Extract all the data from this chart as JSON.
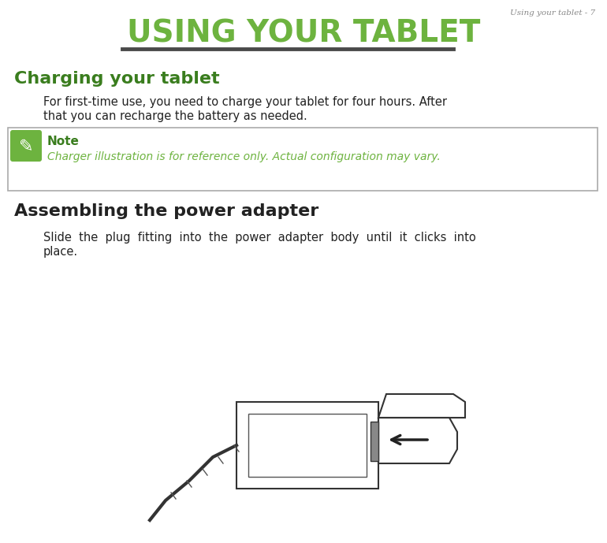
{
  "page_header": "Using your tablet - 7",
  "main_title": "USING YOUR TABLET",
  "main_title_color": "#6db33f",
  "title_underline_color": "#4a4a4a",
  "section1_title": "Charging your tablet",
  "section1_title_color": "#3a7d1e",
  "section1_body_line1": "For first-time use, you need to charge your tablet for four hours. After",
  "section1_body_line2": "that you can recharge the battery as needed.",
  "note_box_border": "#aaaaaa",
  "note_icon_bg": "#6db33f",
  "note_label": "Note",
  "note_label_color": "#3a7d1e",
  "note_italic": "Charger illustration is for reference only. Actual configuration may vary.",
  "note_italic_color": "#6db33f",
  "section2_title": "Assembling the power adapter",
  "section2_title_color": "#222222",
  "section2_body_line1": "Slide  the  plug  fitting  into  the  power  adapter  body  until  it  clicks  into",
  "section2_body_line2": "place.",
  "bg_color": "#ffffff",
  "body_color": "#222222",
  "header_color": "#888888"
}
